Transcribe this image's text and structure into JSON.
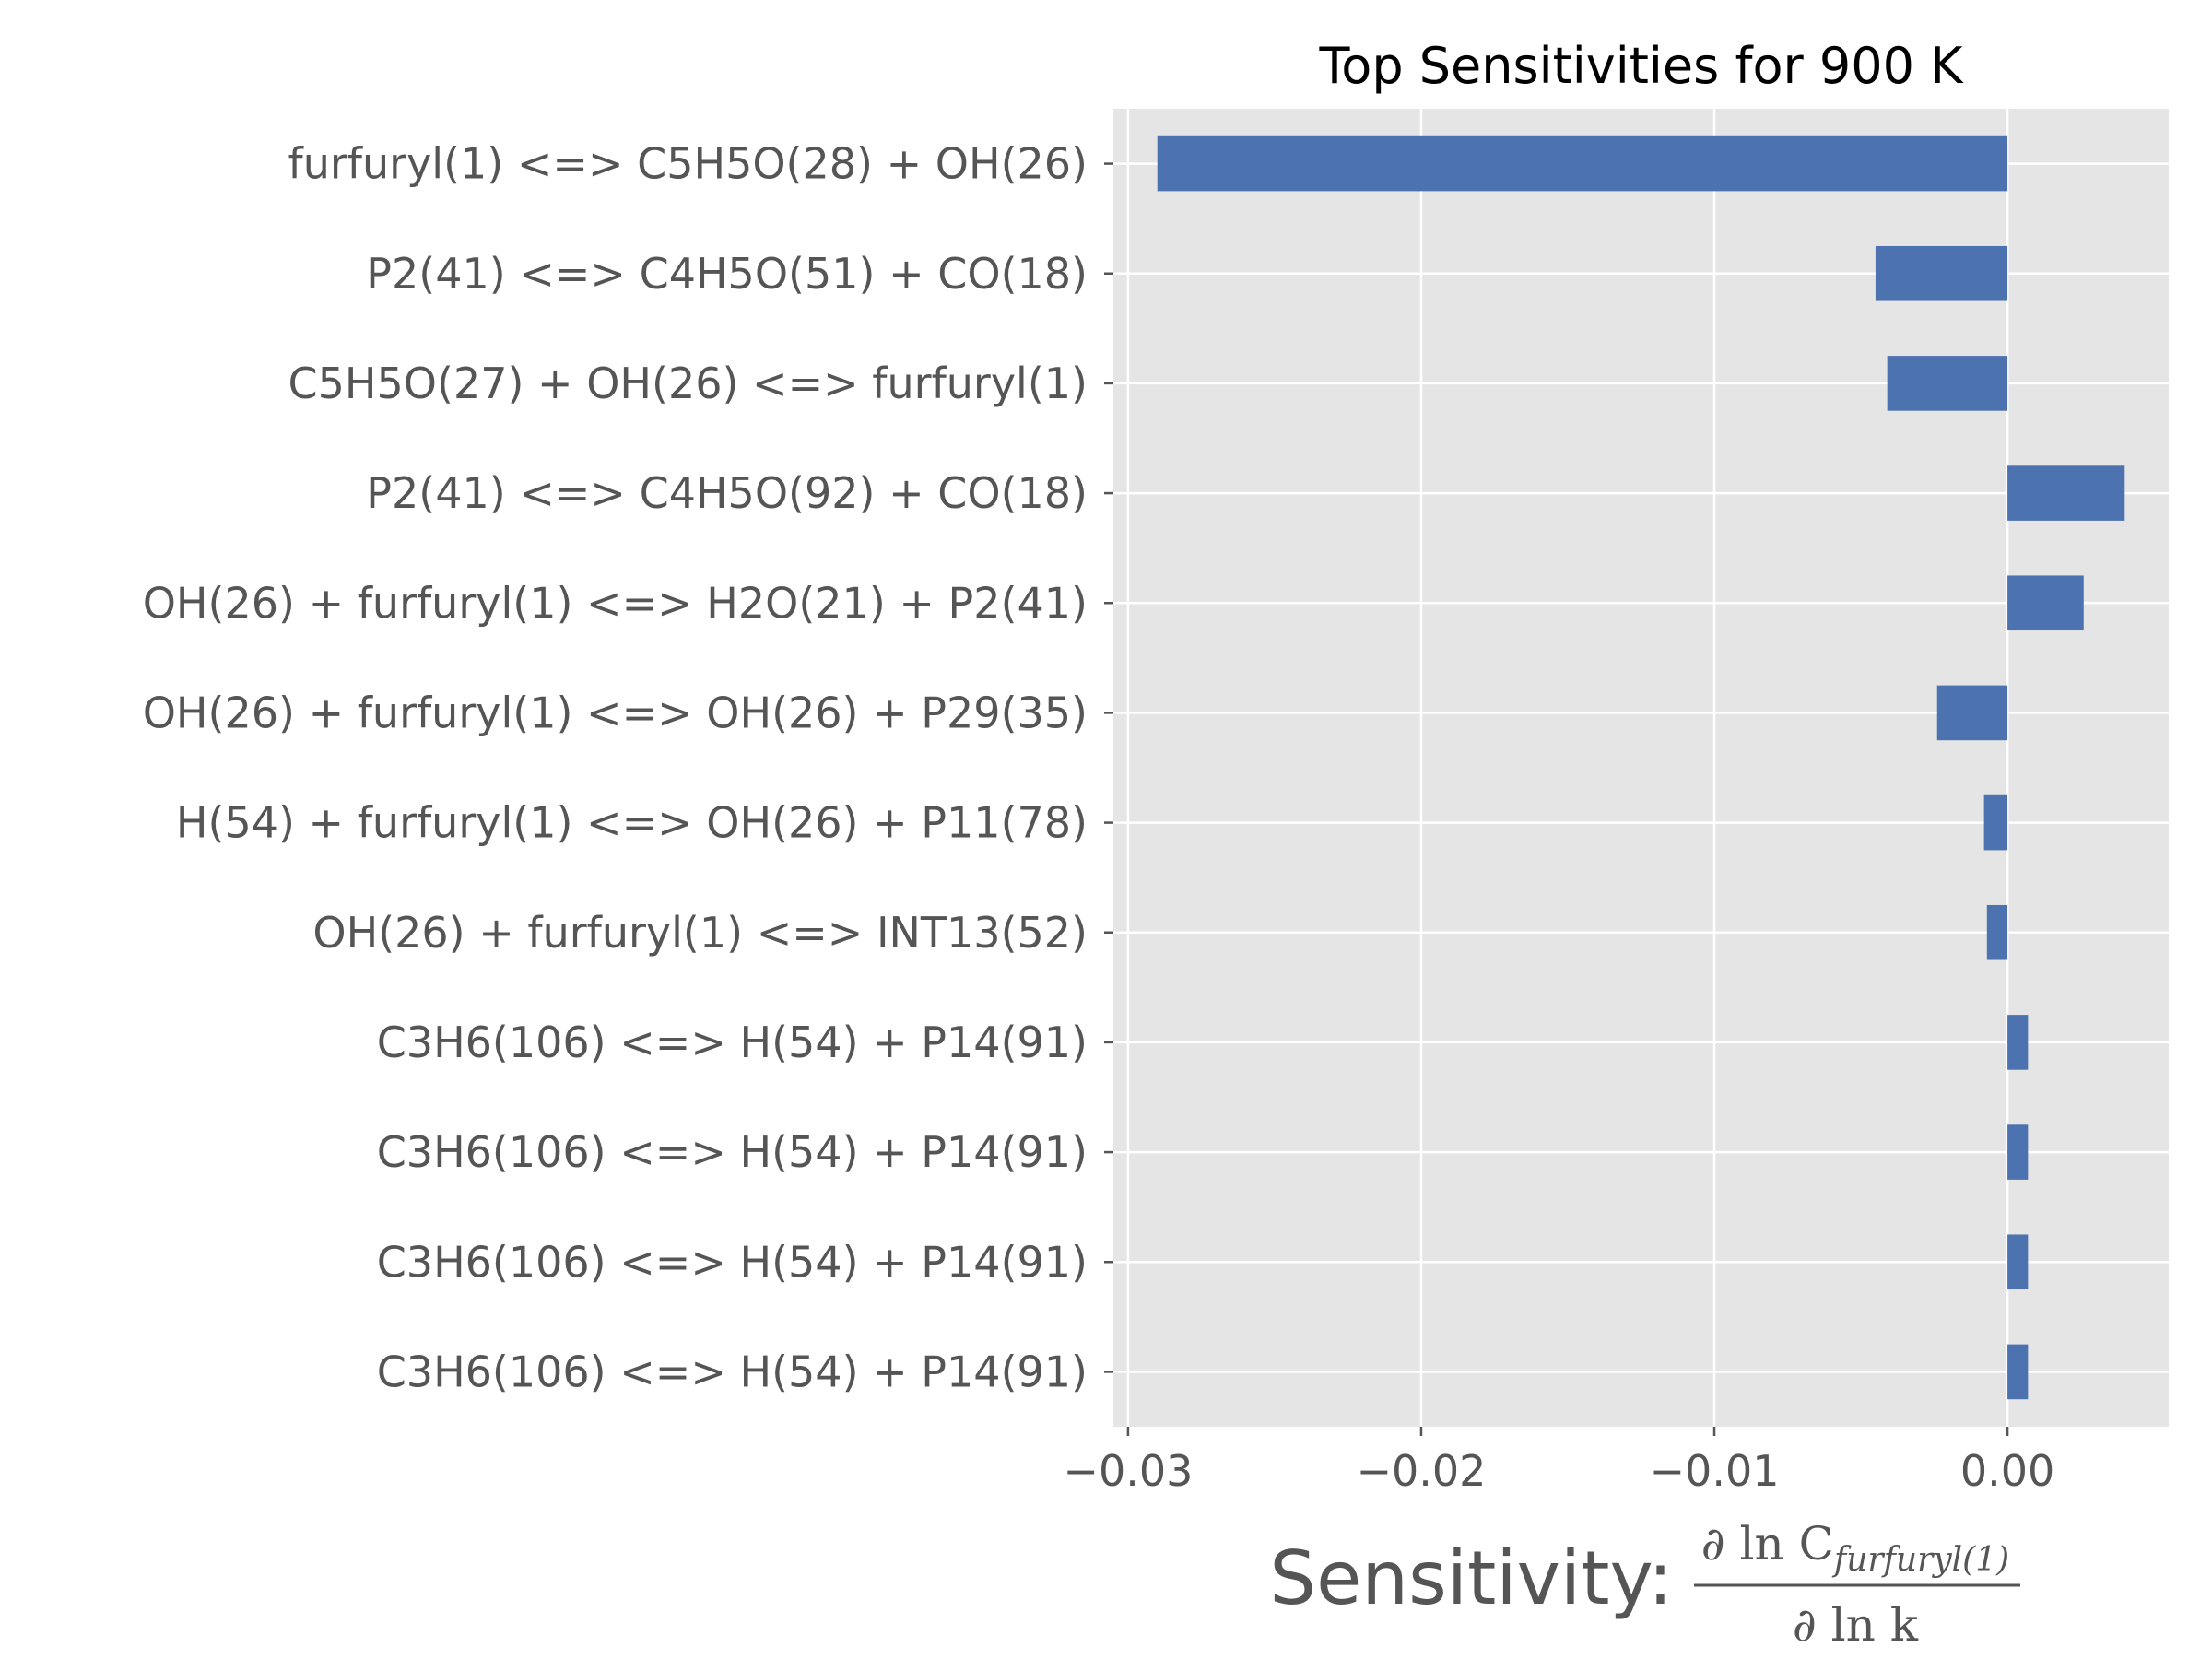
{
  "chart_data": {
    "type": "bar",
    "orientation": "horizontal",
    "title": "Top Sensitivities for 900 K",
    "xlabel": "Sensitivity:",
    "xlabel_math": {
      "numerator_prefix": "∂ ln C",
      "numerator_subscript": "furfuryl(1)",
      "denominator": "∂ ln k"
    },
    "ylabel": "",
    "xlim": [
      -0.0305,
      0.0055
    ],
    "xticks": [
      -0.03,
      -0.02,
      -0.01,
      0.0
    ],
    "xtick_labels": [
      "−0.03",
      "−0.02",
      "−0.01",
      "0.00"
    ],
    "grid": true,
    "colors": {
      "bar": "#4c72b0",
      "plot_background": "#e5e5e5",
      "grid": "#ffffff",
      "tick_text": "#555555"
    },
    "categories": [
      "furfuryl(1) <=> C5H5O(28) + OH(26)",
      "P2(41) <=> C4H5O(51) + CO(18)",
      "C5H5O(27) + OH(26) <=> furfuryl(1)",
      "P2(41) <=> C4H5O(92) + CO(18)",
      "OH(26) + furfuryl(1) <=> H2O(21) + P2(41)",
      "OH(26) + furfuryl(1) <=> OH(26) + P29(35)",
      "H(54) + furfuryl(1) <=> OH(26) + P11(78)",
      "OH(26) + furfuryl(1) <=> INT13(52)",
      "C3H6(106) <=> H(54) + P14(91)",
      "C3H6(106) <=> H(54) + P14(91)",
      "C3H6(106) <=> H(54) + P14(91)",
      "C3H6(106) <=> H(54) + P14(91)"
    ],
    "values": [
      -0.029,
      -0.0045,
      -0.0041,
      0.004,
      0.0026,
      -0.0024,
      -0.0008,
      -0.0007,
      0.0007,
      0.0007,
      0.0007,
      0.0007
    ]
  }
}
